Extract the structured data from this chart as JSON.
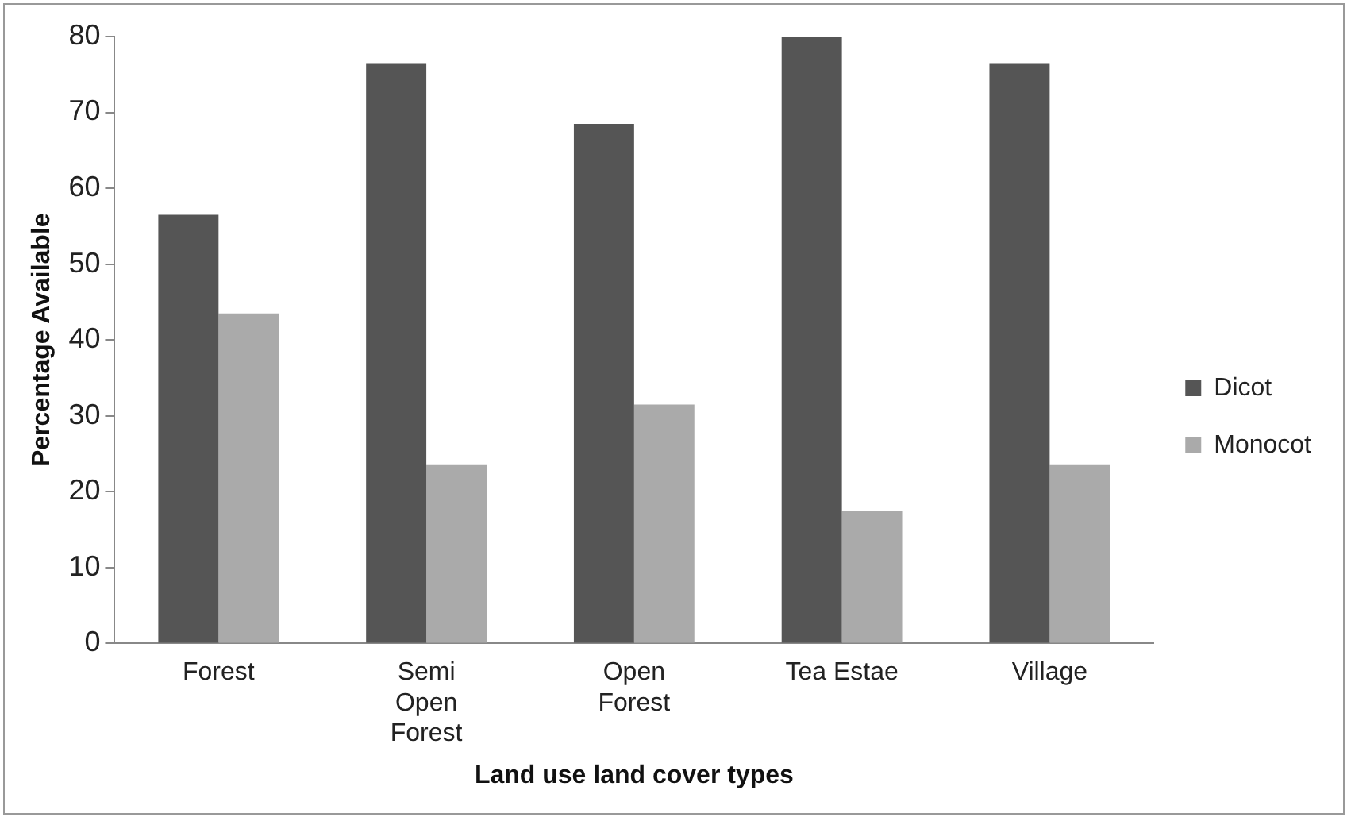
{
  "chart_data": {
    "type": "bar",
    "xlabel": "Land use land cover types",
    "ylabel": "Percentage Available",
    "categories": [
      "Forest",
      "Semi Open Forest",
      "Open Forest",
      "Tea Estae",
      "Village"
    ],
    "series": [
      {
        "name": "Dicot",
        "color": "#555555",
        "values": [
          56.5,
          76.5,
          68.5,
          80,
          76.5
        ]
      },
      {
        "name": "Monocot",
        "color": "#aaaaaa",
        "values": [
          43.5,
          23.5,
          31.5,
          17.5,
          23.5
        ]
      }
    ],
    "ylim": [
      0,
      80
    ],
    "yticks": [
      0,
      10,
      20,
      30,
      40,
      50,
      60,
      70,
      80
    ],
    "grid": false,
    "legend": "right"
  }
}
